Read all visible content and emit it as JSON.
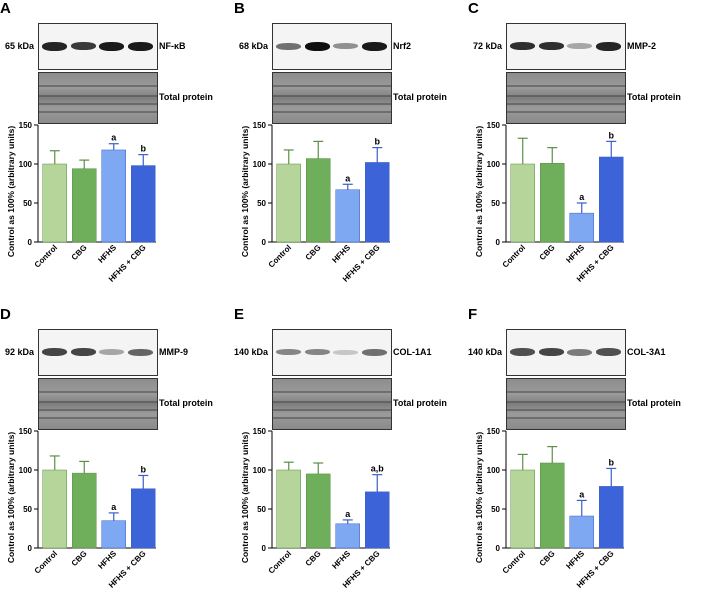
{
  "total_protein_label": "Total protein",
  "categories": [
    "Control",
    "CBG",
    "HFHS",
    "HFHS + CBG"
  ],
  "ylabel": "Control as 100% (arbitrary units)",
  "ytick_labels": [
    "0",
    "50",
    "100",
    "150"
  ],
  "colors": {
    "control": "#b5d59a",
    "cbg": "#6fae5a",
    "hfhs": "#7ea9f2",
    "hfhs_cbg": "#3d63d8",
    "error_green": "#5b8f45",
    "error_blue": "#3b5fc9"
  },
  "panels": [
    {
      "letter": "A",
      "kda": "65 kDa",
      "target": "NF-κB",
      "band_intensity": [
        0.9,
        0.8,
        0.95,
        0.95
      ]
    },
    {
      "letter": "B",
      "kda": "68 kDa",
      "target": "Nrf2",
      "band_intensity": [
        0.55,
        1.0,
        0.4,
        0.95
      ]
    },
    {
      "letter": "C",
      "kda": "72 kDa",
      "target": "MMP-2",
      "band_intensity": [
        0.85,
        0.85,
        0.3,
        0.9
      ]
    },
    {
      "letter": "D",
      "kda": "92 kDa",
      "target": "MMP-9",
      "band_intensity": [
        0.75,
        0.75,
        0.3,
        0.6
      ]
    },
    {
      "letter": "E",
      "kda": "140 kDa",
      "target": "COL-1A1",
      "band_intensity": [
        0.45,
        0.45,
        0.15,
        0.55
      ]
    },
    {
      "letter": "F",
      "kda": "140 kDa",
      "target": "COL-3A1",
      "band_intensity": [
        0.7,
        0.75,
        0.5,
        0.7
      ]
    }
  ],
  "chart_data": [
    {
      "type": "bar",
      "panel": "A",
      "categories": [
        "Control",
        "CBG",
        "HFHS",
        "HFHS + CBG"
      ],
      "values": [
        100,
        94,
        118,
        98
      ],
      "errors": [
        17,
        11,
        8,
        14
      ],
      "annotations": [
        "",
        "",
        "a",
        "b"
      ],
      "ylabel": "Control as 100% (arbitrary units)",
      "ylim": [
        0,
        150
      ]
    },
    {
      "type": "bar",
      "panel": "B",
      "categories": [
        "Control",
        "CBG",
        "HFHS",
        "HFHS + CBG"
      ],
      "values": [
        100,
        107,
        67,
        102
      ],
      "errors": [
        18,
        22,
        7,
        19
      ],
      "annotations": [
        "",
        "",
        "a",
        "b"
      ],
      "ylabel": "Control as 100% (arbitrary units)",
      "ylim": [
        0,
        150
      ]
    },
    {
      "type": "bar",
      "panel": "C",
      "categories": [
        "Control",
        "CBG",
        "HFHS",
        "HFHS + CBG"
      ],
      "values": [
        100,
        101,
        37,
        109
      ],
      "errors": [
        33,
        20,
        13,
        20
      ],
      "annotations": [
        "",
        "",
        "a",
        "b"
      ],
      "ylabel": "Control as 100% (arbitrary units)",
      "ylim": [
        0,
        150
      ]
    },
    {
      "type": "bar",
      "panel": "D",
      "categories": [
        "Control",
        "CBG",
        "HFHS",
        "HFHS + CBG"
      ],
      "values": [
        100,
        96,
        35,
        76
      ],
      "errors": [
        18,
        15,
        10,
        17
      ],
      "annotations": [
        "",
        "",
        "a",
        "b"
      ],
      "ylabel": "Control as 100% (arbitrary units)",
      "ylim": [
        0,
        150
      ]
    },
    {
      "type": "bar",
      "panel": "E",
      "categories": [
        "Control",
        "CBG",
        "HFHS",
        "HFHS + CBG"
      ],
      "values": [
        100,
        95,
        31,
        72
      ],
      "errors": [
        10,
        14,
        5,
        22
      ],
      "annotations": [
        "",
        "",
        "a",
        "a,b"
      ],
      "ylabel": "Control as 100% (arbitrary units)",
      "ylim": [
        0,
        150
      ]
    },
    {
      "type": "bar",
      "panel": "F",
      "categories": [
        "Control",
        "CBG",
        "HFHS",
        "HFHS + CBG"
      ],
      "values": [
        100,
        109,
        41,
        79
      ],
      "errors": [
        20,
        21,
        20,
        23
      ],
      "annotations": [
        "",
        "",
        "a",
        "b"
      ],
      "ylabel": "Control as 100% (arbitrary units)",
      "ylim": [
        0,
        150
      ]
    }
  ]
}
